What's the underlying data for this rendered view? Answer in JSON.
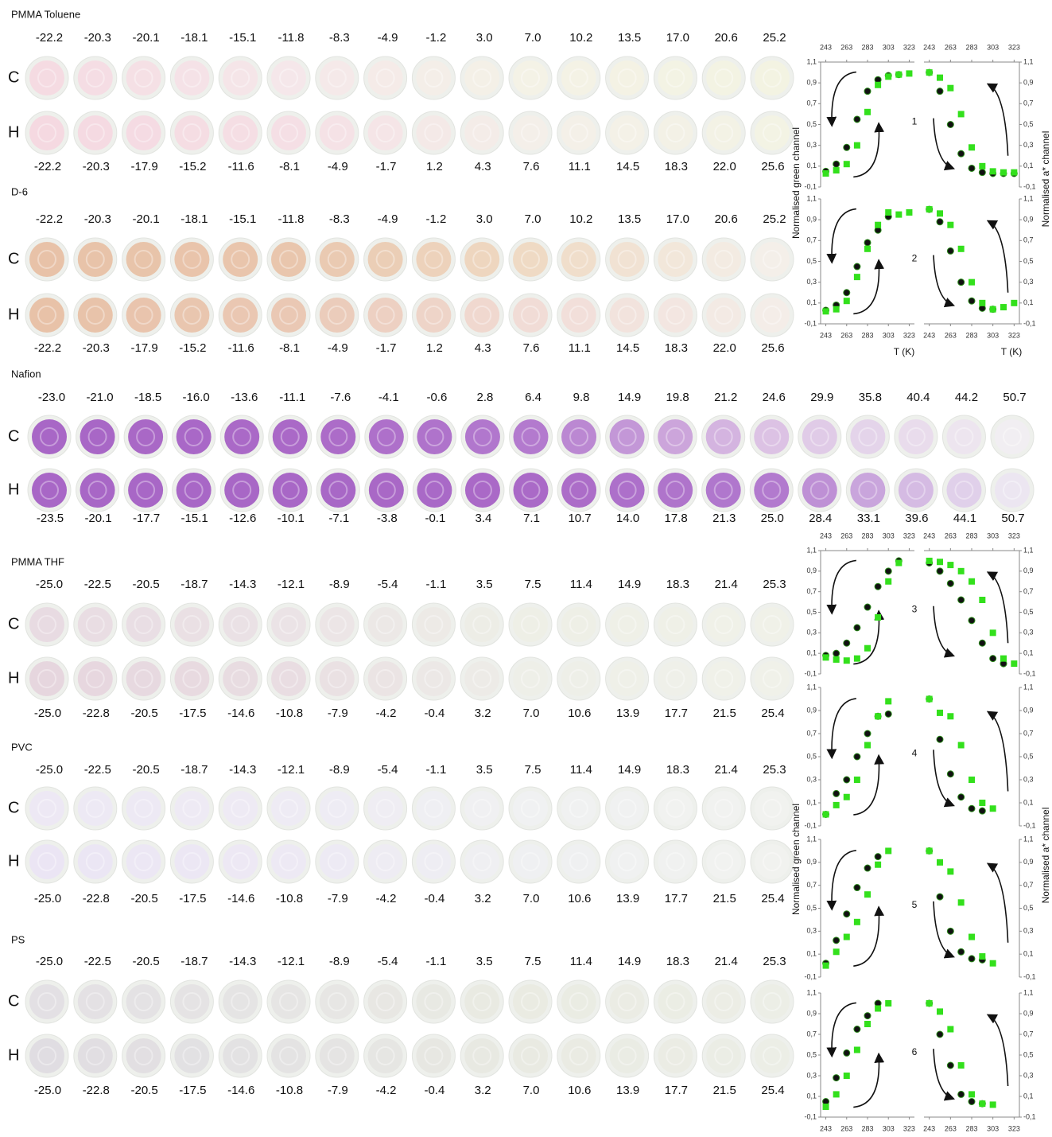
{
  "sections": [
    {
      "title": "PMMA Toluene",
      "cooling": [
        "-22.2",
        "-20.3",
        "-20.1",
        "-18.1",
        "-15.1",
        "-11.8",
        "-8.3",
        "-4.9",
        "-1.2",
        "3.0",
        "7.0",
        "10.2",
        "13.5",
        "17.0",
        "20.6",
        "25.2"
      ],
      "heating": [
        "-22.2",
        "-20.3",
        "-17.9",
        "-15.2",
        "-11.6",
        "-8.1",
        "-4.9",
        "-1.7",
        "1.2",
        "4.3",
        "7.6",
        "11.1",
        "14.5",
        "18.3",
        "22.0",
        "25.6"
      ],
      "rows": [
        {
          "label": "C",
          "colors": [
            "#f5dbe2",
            "#f5e7ea",
            "#f4f2e6",
            "#f3f3e2"
          ]
        },
        {
          "label": "H",
          "colors": [
            "#f5d9e1",
            "#f5dfe5",
            "#f4efe9",
            "#f3f3e4"
          ]
        }
      ]
    },
    {
      "title": "D-6",
      "cooling": [
        "-22.2",
        "-20.3",
        "-20.1",
        "-18.1",
        "-15.1",
        "-11.8",
        "-8.3",
        "-4.9",
        "-1.2",
        "3.0",
        "7.0",
        "10.2",
        "13.5",
        "17.0",
        "20.6",
        "25.2"
      ],
      "heating": [
        "-22.2",
        "-20.3",
        "-17.9",
        "-15.2",
        "-11.6",
        "-8.1",
        "-4.9",
        "-1.7",
        "1.2",
        "4.3",
        "7.6",
        "11.1",
        "14.5",
        "18.3",
        "22.0",
        "25.6"
      ],
      "rows": [
        {
          "label": "C",
          "colors": [
            "#e8c2a8",
            "#e9c6ad",
            "#efdac4",
            "#f4efe9"
          ]
        },
        {
          "label": "H",
          "colors": [
            "#e8c2a8",
            "#eac8b4",
            "#f1dcd6",
            "#f4ede8"
          ]
        }
      ]
    },
    {
      "title": "Nafion",
      "cooling": [
        "-23.0",
        "-21.0",
        "-18.5",
        "-16.0",
        "-13.6",
        "-11.1",
        "-7.6",
        "-4.1",
        "-0.6",
        "2.8",
        "6.4",
        "9.8",
        "14.9",
        "19.8",
        "21.2",
        "24.6",
        "29.9",
        "35.8",
        "40.4",
        "44.2",
        "50.7"
      ],
      "heating": [
        "-23.5",
        "-20.1",
        "-17.7",
        "-15.1",
        "-12.6",
        "-10.1",
        "-7.1",
        "-3.8",
        "-0.1",
        "3.4",
        "7.1",
        "10.7",
        "14.0",
        "17.8",
        "21.3",
        "25.0",
        "28.4",
        "33.1",
        "39.6",
        "44.1",
        "50.7"
      ],
      "rows": [
        {
          "label": "C",
          "colors": [
            "#a867c6",
            "#aa69c7",
            "#b37ace",
            "#dcc2e4",
            "#f1eef2"
          ]
        },
        {
          "label": "H",
          "colors": [
            "#a867c6",
            "#a867c6",
            "#aa6ac7",
            "#b27ace",
            "#ece6f1"
          ]
        }
      ]
    },
    {
      "title": "PMMA THF",
      "cooling": [
        "-25.0",
        "-22.5",
        "-20.5",
        "-18.7",
        "-14.3",
        "-12.1",
        "-8.9",
        "-5.4",
        "-1.1",
        "3.5",
        "7.5",
        "11.4",
        "14.9",
        "18.3",
        "21.4",
        "25.3"
      ],
      "heating": [
        "-25.0",
        "-22.8",
        "-20.5",
        "-17.5",
        "-14.6",
        "-10.8",
        "-7.9",
        "-4.2",
        "-0.4",
        "3.2",
        "7.0",
        "10.6",
        "13.9",
        "17.7",
        "21.5",
        "25.4"
      ],
      "rows": [
        {
          "label": "C",
          "colors": [
            "#e8dbe2",
            "#ebe3e6",
            "#eeefe6",
            "#f0f1e8"
          ]
        },
        {
          "label": "H",
          "colors": [
            "#e6d6de",
            "#e9dde2",
            "#eeefe8",
            "#f0f1e9"
          ]
        }
      ]
    },
    {
      "title": "PVC",
      "cooling": [
        "-25.0",
        "-22.5",
        "-20.5",
        "-18.7",
        "-14.3",
        "-12.1",
        "-8.9",
        "-5.4",
        "-1.1",
        "3.5",
        "7.5",
        "11.4",
        "14.9",
        "18.3",
        "21.4",
        "25.3"
      ],
      "heating": [
        "-25.0",
        "-22.8",
        "-20.5",
        "-17.5",
        "-14.6",
        "-10.8",
        "-7.9",
        "-4.2",
        "-0.4",
        "3.2",
        "7.0",
        "10.6",
        "13.9",
        "17.7",
        "21.5",
        "25.4"
      ],
      "rows": [
        {
          "label": "C",
          "colors": [
            "#ede8f4",
            "#eeebf4",
            "#f0f1f2",
            "#f1f2ef"
          ]
        },
        {
          "label": "H",
          "colors": [
            "#ebe5f4",
            "#ede9f4",
            "#eff0f2",
            "#f1f2ef"
          ]
        }
      ]
    },
    {
      "title": "PS",
      "cooling": [
        "-25.0",
        "-22.5",
        "-20.5",
        "-18.7",
        "-14.3",
        "-12.1",
        "-8.9",
        "-5.4",
        "-1.1",
        "3.5",
        "7.5",
        "11.4",
        "14.9",
        "18.3",
        "21.4",
        "25.3"
      ],
      "heating": [
        "-25.0",
        "-22.8",
        "-20.5",
        "-17.5",
        "-14.6",
        "-10.8",
        "-7.9",
        "-4.2",
        "-0.4",
        "3.2",
        "7.0",
        "10.6",
        "13.9",
        "17.7",
        "21.5",
        "25.4"
      ],
      "rows": [
        {
          "label": "C",
          "colors": [
            "#e3e0e4",
            "#e6e5e4",
            "#eaebe2",
            "#eceee6"
          ]
        },
        {
          "label": "H",
          "colors": [
            "#e0dde2",
            "#e4e3e3",
            "#e9eae2",
            "#eceee6"
          ]
        }
      ]
    }
  ],
  "plot_axes": {
    "xlim": [
      238,
      328
    ],
    "xticks": [
      243,
      263,
      283,
      303,
      323
    ],
    "ylim": [
      -0.1,
      1.1
    ],
    "yticks": [
      {
        "value": 1.1,
        "label": "1,1"
      },
      {
        "value": 0.9,
        "label": "0,9"
      },
      {
        "value": 0.7,
        "label": "0,7"
      },
      {
        "value": 0.5,
        "label": "0,5"
      },
      {
        "value": 0.3,
        "label": "0,3"
      },
      {
        "value": 0.1,
        "label": "0,1"
      },
      {
        "value": -0.1,
        "label": "-0,1"
      }
    ],
    "ylabel_left": "Normalised green channel",
    "ylabel_right": "Normalised a* channel",
    "xlabel": "T (K)"
  },
  "plots": [
    {
      "label": "1",
      "x": [
        243,
        253,
        263,
        273,
        283,
        293,
        303,
        313,
        323
      ],
      "panels": [
        {
          "series": [
            {
              "marker": "circle",
              "color": "#111111",
              "values": [
                0.05,
                0.12,
                0.28,
                0.55,
                0.82,
                0.93,
                0.97,
                0.98,
                null
              ]
            },
            {
              "marker": "square",
              "color": "#33e01c",
              "values": [
                0.03,
                0.06,
                0.12,
                0.3,
                0.62,
                0.88,
                0.96,
                0.98,
                0.99
              ]
            }
          ]
        },
        {
          "series": [
            {
              "marker": "circle",
              "color": "#111111",
              "values": [
                1.0,
                0.82,
                0.5,
                0.22,
                0.08,
                0.04,
                0.03,
                0.03,
                0.03
              ]
            },
            {
              "marker": "square",
              "color": "#33e01c",
              "values": [
                1.0,
                0.95,
                0.85,
                0.6,
                0.28,
                0.1,
                0.05,
                0.04,
                0.04
              ]
            }
          ]
        }
      ]
    },
    {
      "label": "2",
      "x": [
        243,
        253,
        263,
        273,
        283,
        293,
        303,
        313,
        323
      ],
      "panels": [
        {
          "series": [
            {
              "marker": "circle",
              "color": "#111111",
              "values": [
                0.03,
                0.08,
                0.2,
                0.45,
                0.68,
                0.8,
                0.93,
                null,
                null
              ]
            },
            {
              "marker": "square",
              "color": "#33e01c",
              "values": [
                0.02,
                0.04,
                0.12,
                0.35,
                0.62,
                0.85,
                0.97,
                0.95,
                0.97
              ]
            }
          ]
        },
        {
          "series": [
            {
              "marker": "circle",
              "color": "#111111",
              "values": [
                1.0,
                0.88,
                0.6,
                0.3,
                0.12,
                0.05,
                0.04,
                null,
                null
              ]
            },
            {
              "marker": "square",
              "color": "#33e01c",
              "values": [
                1.0,
                0.96,
                0.85,
                0.62,
                0.3,
                0.1,
                0.04,
                0.06,
                0.1
              ]
            }
          ]
        }
      ]
    },
    {
      "label": "3",
      "x": [
        243,
        253,
        263,
        273,
        283,
        293,
        303,
        313,
        323
      ],
      "panels": [
        {
          "series": [
            {
              "marker": "circle",
              "color": "#111111",
              "values": [
                0.08,
                0.1,
                0.2,
                0.35,
                0.55,
                0.75,
                0.9,
                1.0,
                null
              ]
            },
            {
              "marker": "square",
              "color": "#33e01c",
              "values": [
                0.06,
                0.04,
                0.03,
                0.05,
                0.15,
                0.45,
                0.8,
                0.98,
                null
              ]
            }
          ]
        },
        {
          "series": [
            {
              "marker": "circle",
              "color": "#111111",
              "values": [
                0.98,
                0.9,
                0.78,
                0.62,
                0.42,
                0.2,
                0.05,
                0.0,
                null
              ]
            },
            {
              "marker": "square",
              "color": "#33e01c",
              "values": [
                1.0,
                0.99,
                0.96,
                0.9,
                0.8,
                0.62,
                0.3,
                0.05,
                0.0
              ]
            }
          ]
        }
      ]
    },
    {
      "label": "4",
      "x": [
        243,
        253,
        263,
        273,
        283,
        293,
        303,
        313,
        323
      ],
      "panels": [
        {
          "series": [
            {
              "marker": "circle",
              "color": "#111111",
              "values": [
                0.0,
                0.18,
                0.3,
                0.5,
                0.7,
                0.85,
                0.87,
                null,
                null
              ]
            },
            {
              "marker": "square",
              "color": "#33e01c",
              "values": [
                0.0,
                0.08,
                0.15,
                0.3,
                0.6,
                0.85,
                0.98,
                null,
                null
              ]
            }
          ]
        },
        {
          "series": [
            {
              "marker": "circle",
              "color": "#111111",
              "values": [
                1.0,
                0.65,
                0.35,
                0.15,
                0.05,
                0.03,
                null,
                null,
                null
              ]
            },
            {
              "marker": "square",
              "color": "#33e01c",
              "values": [
                1.0,
                0.88,
                0.85,
                0.6,
                0.3,
                0.1,
                0.05,
                null,
                null
              ]
            }
          ]
        }
      ]
    },
    {
      "label": "5",
      "x": [
        243,
        253,
        263,
        273,
        283,
        293,
        303,
        313,
        323
      ],
      "panels": [
        {
          "series": [
            {
              "marker": "circle",
              "color": "#111111",
              "values": [
                0.02,
                0.22,
                0.45,
                0.68,
                0.85,
                0.95,
                null,
                null,
                null
              ]
            },
            {
              "marker": "square",
              "color": "#33e01c",
              "values": [
                0.0,
                0.12,
                0.25,
                0.38,
                0.62,
                0.88,
                1.0,
                null,
                null
              ]
            }
          ]
        },
        {
          "series": [
            {
              "marker": "circle",
              "color": "#111111",
              "values": [
                1.0,
                0.6,
                0.3,
                0.12,
                0.06,
                0.05,
                null,
                null,
                null
              ]
            },
            {
              "marker": "square",
              "color": "#33e01c",
              "values": [
                1.0,
                0.9,
                0.82,
                0.55,
                0.25,
                0.08,
                0.02,
                null,
                null
              ]
            }
          ]
        }
      ]
    },
    {
      "label": "6",
      "x": [
        243,
        253,
        263,
        273,
        283,
        293,
        303,
        313,
        323
      ],
      "panels": [
        {
          "series": [
            {
              "marker": "circle",
              "color": "#111111",
              "values": [
                0.05,
                0.28,
                0.52,
                0.75,
                0.88,
                1.0,
                null,
                null,
                null
              ]
            },
            {
              "marker": "square",
              "color": "#33e01c",
              "values": [
                0.0,
                0.12,
                0.3,
                0.55,
                0.8,
                0.95,
                1.0,
                null,
                null
              ]
            }
          ]
        },
        {
          "series": [
            {
              "marker": "circle",
              "color": "#111111",
              "values": [
                1.0,
                0.7,
                0.4,
                0.12,
                0.05,
                0.03,
                null,
                null,
                null
              ]
            },
            {
              "marker": "square",
              "color": "#33e01c",
              "values": [
                1.0,
                0.92,
                0.75,
                0.4,
                0.12,
                0.03,
                0.02,
                null,
                null
              ]
            }
          ]
        }
      ]
    }
  ]
}
